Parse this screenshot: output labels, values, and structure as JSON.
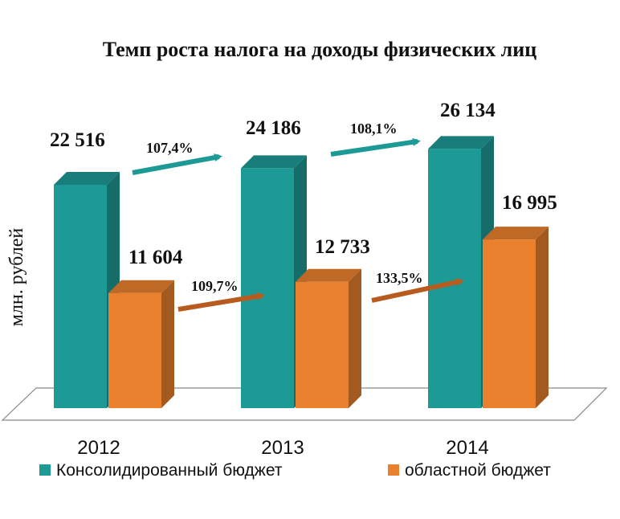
{
  "chart_data": {
    "type": "bar",
    "title": "Темп роста налога на доходы физических лиц",
    "ylabel": "млн. рублей",
    "xlabel": "",
    "categories": [
      "2012",
      "2013",
      "2014"
    ],
    "ylim": [
      0,
      30000
    ],
    "grid": false,
    "legend_position": "bottom",
    "series": [
      {
        "name": "Консолидированный бюджет",
        "values": [
          22516,
          24186,
          26134
        ],
        "labels": [
          "22 516",
          "24 186",
          "26 134"
        ],
        "color": "#1e9a96",
        "growth": [
          "107,4%",
          "108,1%"
        ],
        "arrow_color": "#1e9a96"
      },
      {
        "name": "областной бюджет",
        "values": [
          11604,
          12733,
          16995
        ],
        "labels": [
          "11 604",
          "12 733",
          "16 995"
        ],
        "color": "#e8802e",
        "growth": [
          "109,7%",
          "133,5%"
        ],
        "arrow_color": "#b85b1f"
      }
    ]
  }
}
